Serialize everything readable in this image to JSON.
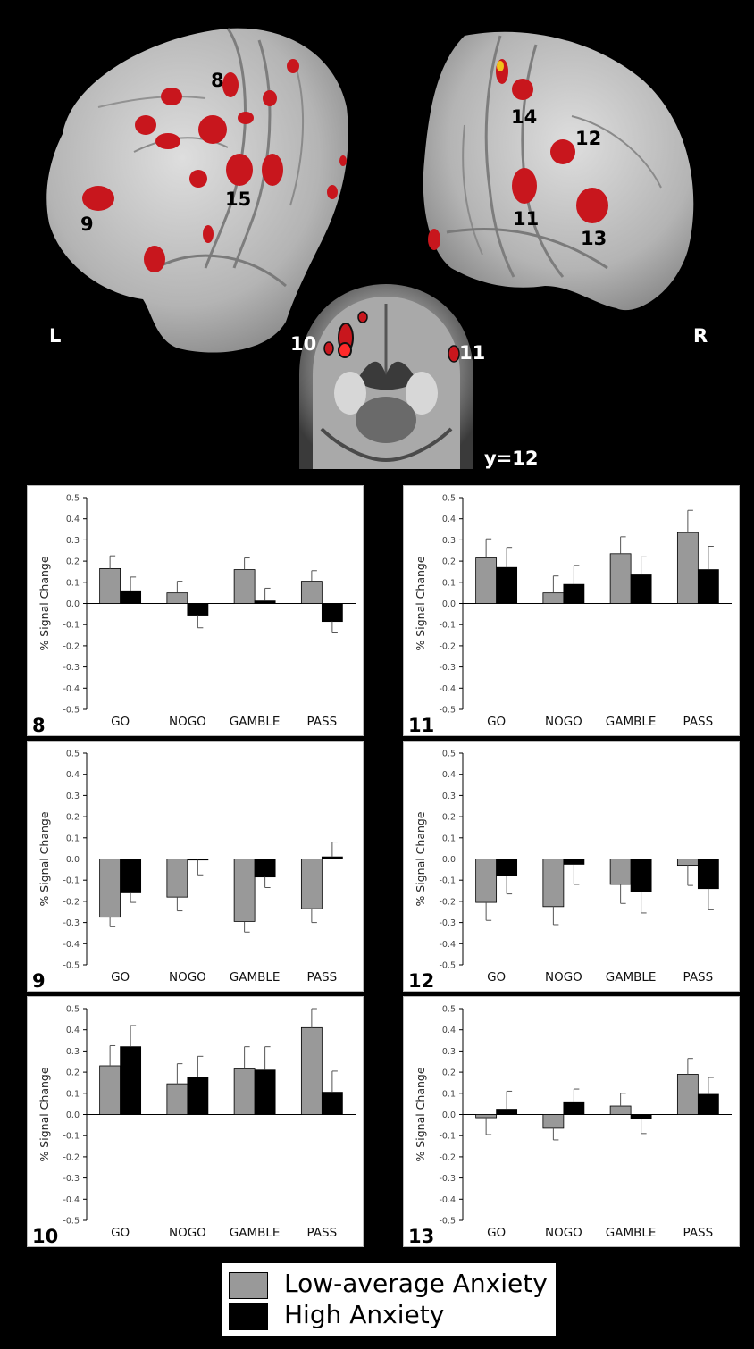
{
  "brain": {
    "left_label": "L",
    "right_label": "R",
    "slice_label": "y=12",
    "region_labels": [
      "8",
      "9",
      "15",
      "14",
      "12",
      "11",
      "13",
      "10",
      "11"
    ]
  },
  "colors": {
    "low": "#999999",
    "high": "#000000",
    "activation": "#c8161d",
    "background": "#000000"
  },
  "legend": {
    "low_label": "Low-average Anxiety",
    "high_label": "High Anxiety"
  },
  "chart_data": [
    {
      "id": "8",
      "type": "bar",
      "panel_label": "8",
      "ylabel": "% Signal Change",
      "ylim": [
        -0.5,
        0.5
      ],
      "yticks": [
        "0.5",
        "0.4",
        "0.3",
        "0.2",
        "0.1",
        "0.0",
        "-0.1",
        "-0.2",
        "-0.3",
        "-0.4",
        "-0.5"
      ],
      "categories": [
        "GO",
        "NOGO",
        "GAMBLE",
        "PASS"
      ],
      "series": [
        {
          "name": "Low-average Anxiety",
          "values": [
            0.165,
            0.05,
            0.16,
            0.105
          ],
          "errors": [
            0.06,
            0.055,
            0.055,
            0.05
          ]
        },
        {
          "name": "High Anxiety",
          "values": [
            0.06,
            -0.055,
            0.012,
            -0.085
          ],
          "errors": [
            0.065,
            0.06,
            0.06,
            0.05
          ]
        }
      ]
    },
    {
      "id": "11",
      "type": "bar",
      "panel_label": "11",
      "ylabel": "% Signal Change",
      "ylim": [
        -0.5,
        0.5
      ],
      "yticks": [
        "0.5",
        "0.4",
        "0.3",
        "0.2",
        "0.1",
        "0.0",
        "-0.1",
        "-0.2",
        "-0.3",
        "-0.4",
        "-0.5"
      ],
      "categories": [
        "GO",
        "NOGO",
        "GAMBLE",
        "PASS"
      ],
      "series": [
        {
          "name": "Low-average Anxiety",
          "values": [
            0.215,
            0.05,
            0.235,
            0.335
          ],
          "errors": [
            0.09,
            0.08,
            0.08,
            0.105
          ]
        },
        {
          "name": "High Anxiety",
          "values": [
            0.17,
            0.09,
            0.135,
            0.16
          ],
          "errors": [
            0.095,
            0.09,
            0.085,
            0.11
          ]
        }
      ]
    },
    {
      "id": "9",
      "type": "bar",
      "panel_label": "9",
      "ylabel": "% Signal Change",
      "ylim": [
        -0.5,
        0.5
      ],
      "yticks": [
        "0.5",
        "0.4",
        "0.3",
        "0.2",
        "0.1",
        "0.0",
        "-0.1",
        "-0.2",
        "-0.3",
        "-0.4",
        "-0.5"
      ],
      "categories": [
        "GO",
        "NOGO",
        "GAMBLE",
        "PASS"
      ],
      "series": [
        {
          "name": "Low-average Anxiety",
          "values": [
            -0.275,
            -0.18,
            -0.295,
            -0.235
          ],
          "errors": [
            0.045,
            0.065,
            0.05,
            0.065
          ]
        },
        {
          "name": "High Anxiety",
          "values": [
            -0.16,
            -0.005,
            -0.085,
            0.01
          ],
          "errors": [
            0.045,
            0.07,
            0.05,
            0.07
          ]
        }
      ]
    },
    {
      "id": "12",
      "type": "bar",
      "panel_label": "12",
      "ylabel": "% Signal Change",
      "ylim": [
        -0.5,
        0.5
      ],
      "yticks": [
        "0.5",
        "0.4",
        "0.3",
        "0.2",
        "0.1",
        "0.0",
        "-0.1",
        "-0.2",
        "-0.3",
        "-0.4",
        "-0.5"
      ],
      "categories": [
        "GO",
        "NOGO",
        "GAMBLE",
        "PASS"
      ],
      "series": [
        {
          "name": "Low-average Anxiety",
          "values": [
            -0.205,
            -0.225,
            -0.12,
            -0.03
          ],
          "errors": [
            0.085,
            0.085,
            0.09,
            0.095
          ]
        },
        {
          "name": "High Anxiety",
          "values": [
            -0.08,
            -0.025,
            -0.155,
            -0.14
          ],
          "errors": [
            0.085,
            0.095,
            0.1,
            0.1
          ]
        }
      ]
    },
    {
      "id": "10",
      "type": "bar",
      "panel_label": "10",
      "ylabel": "% Signal Change",
      "ylim": [
        -0.5,
        0.5
      ],
      "yticks": [
        "0.5",
        "0.4",
        "0.3",
        "0.2",
        "0.1",
        "0.0",
        "-0.1",
        "-0.2",
        "-0.3",
        "-0.4",
        "-0.5"
      ],
      "categories": [
        "GO",
        "NOGO",
        "GAMBLE",
        "PASS"
      ],
      "series": [
        {
          "name": "Low-average Anxiety",
          "values": [
            0.23,
            0.145,
            0.215,
            0.41
          ],
          "errors": [
            0.095,
            0.095,
            0.105,
            0.09
          ]
        },
        {
          "name": "High Anxiety",
          "values": [
            0.32,
            0.175,
            0.21,
            0.105
          ],
          "errors": [
            0.1,
            0.1,
            0.11,
            0.1
          ]
        }
      ]
    },
    {
      "id": "13",
      "type": "bar",
      "panel_label": "13",
      "ylabel": "% Signal Change",
      "ylim": [
        -0.5,
        0.5
      ],
      "yticks": [
        "0.5",
        "0.4",
        "0.3",
        "0.2",
        "0.1",
        "0.0",
        "-0.1",
        "-0.2",
        "-0.3",
        "-0.4",
        "-0.5"
      ],
      "categories": [
        "GO",
        "NOGO",
        "GAMBLE",
        "PASS"
      ],
      "series": [
        {
          "name": "Low-average Anxiety",
          "values": [
            -0.015,
            -0.065,
            0.04,
            0.19
          ],
          "errors": [
            0.08,
            0.055,
            0.06,
            0.075
          ]
        },
        {
          "name": "High Anxiety",
          "values": [
            0.025,
            0.06,
            -0.02,
            0.095
          ],
          "errors": [
            0.085,
            0.06,
            0.07,
            0.08
          ]
        }
      ]
    }
  ]
}
